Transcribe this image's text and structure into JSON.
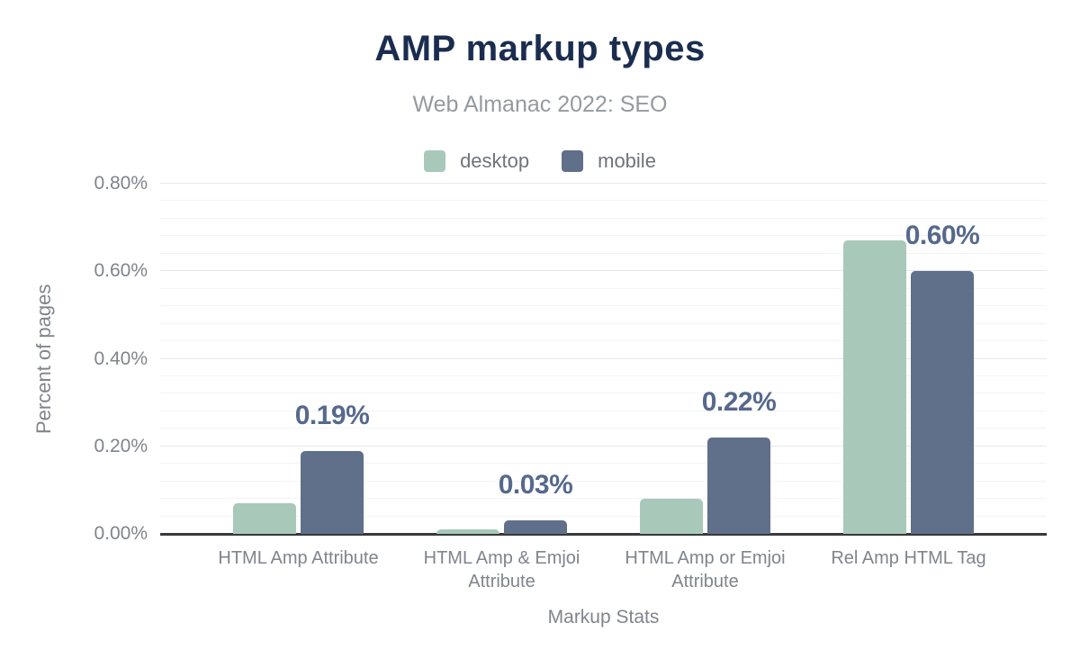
{
  "header": {
    "title": "AMP markup types",
    "subtitle": "Web Almanac 2022: SEO"
  },
  "chart_data": {
    "type": "bar",
    "title": "AMP markup types",
    "subtitle": "Web Almanac 2022: SEO",
    "categories": [
      "HTML Amp Attribute",
      "HTML Amp & Emjoi Attribute",
      "HTML Amp or Emjoi Attribute",
      "Rel Amp HTML Tag"
    ],
    "series": [
      {
        "name": "desktop",
        "color": "#a8c8ba",
        "values": [
          0.07,
          0.01,
          0.08,
          0.67
        ]
      },
      {
        "name": "mobile",
        "color": "#606f8a",
        "values": [
          0.19,
          0.03,
          0.22,
          0.6
        ]
      }
    ],
    "data_labels": {
      "series": "mobile",
      "labels": [
        "0.19%",
        "0.03%",
        "0.22%",
        "0.60%"
      ]
    },
    "xlabel": "Markup Stats",
    "ylabel": "Percent of pages",
    "ylim": [
      0,
      0.8
    ],
    "y_ticks": [
      {
        "value": 0.0,
        "label": "0.00%"
      },
      {
        "value": 0.2,
        "label": "0.20%"
      },
      {
        "value": 0.4,
        "label": "0.40%"
      },
      {
        "value": 0.6,
        "label": "0.60%"
      },
      {
        "value": 0.8,
        "label": "0.80%"
      }
    ],
    "y_minor_step": 0.04,
    "grid": true,
    "legend_position": "top"
  },
  "colors": {
    "title": "#1b2d4f",
    "subtitle": "#949aa0",
    "legend_text": "#6e747d",
    "axis_text": "#7f858d",
    "data_label": "#56698d",
    "desktop_bar": "#a8c8ba",
    "mobile_bar": "#606f8a",
    "grid_major": "#e7e8eb",
    "grid_minor": "#f3f4f6",
    "axis_line": "#37393c"
  }
}
